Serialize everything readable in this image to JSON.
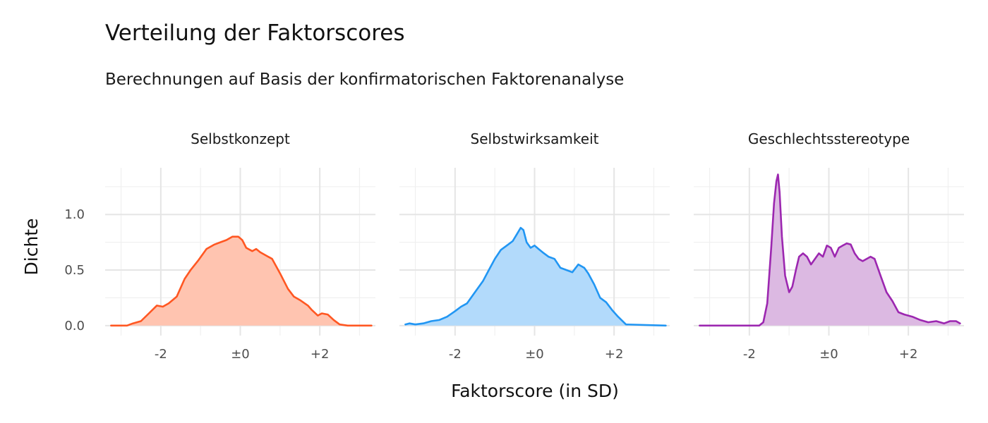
{
  "chart_data": {
    "type": "area",
    "title": "Verteilung der Faktorscores",
    "subtitle": "Berechnungen auf Basis der konfirmatorischen Faktorenanalyse",
    "xlabel": "Faktorscore (in SD)",
    "ylabel": "Dichte",
    "x_ticks": [
      -2,
      0,
      2
    ],
    "x_tick_labels": [
      "-2",
      "±0",
      "+2"
    ],
    "y_ticks": [
      0,
      0.5,
      1
    ],
    "y_tick_labels": [
      "0.0",
      "0.5",
      "1.0"
    ],
    "xlim": [
      -3.4,
      3.4
    ],
    "ylim": [
      -0.09,
      1.42
    ],
    "grid": true,
    "legend": "none",
    "panels": [
      {
        "name": "Selbstkonzept",
        "line_color": "#FF5722",
        "fill_color": "#FFC4B0",
        "x": [
          -3.25,
          -2.85,
          -2.7,
          -2.5,
          -2.3,
          -2.1,
          -1.95,
          -1.8,
          -1.6,
          -1.4,
          -1.25,
          -1.05,
          -0.85,
          -0.65,
          -0.5,
          -0.35,
          -0.2,
          -0.05,
          0.05,
          0.15,
          0.3,
          0.4,
          0.5,
          0.65,
          0.8,
          1.0,
          1.2,
          1.35,
          1.5,
          1.7,
          1.8,
          1.95,
          2.05,
          2.2,
          2.35,
          2.5,
          2.7,
          3.3
        ],
        "y": [
          0.0,
          0.0,
          0.02,
          0.04,
          0.11,
          0.18,
          0.17,
          0.2,
          0.26,
          0.42,
          0.5,
          0.59,
          0.69,
          0.73,
          0.75,
          0.77,
          0.8,
          0.8,
          0.77,
          0.7,
          0.67,
          0.69,
          0.66,
          0.63,
          0.6,
          0.47,
          0.33,
          0.26,
          0.23,
          0.18,
          0.14,
          0.09,
          0.11,
          0.1,
          0.05,
          0.01,
          0.0,
          0.0
        ]
      },
      {
        "name": "Selbstwirksamkeit",
        "line_color": "#2196F3",
        "fill_color": "#B2DAFB",
        "x": [
          -3.25,
          -3.15,
          -3.0,
          -2.8,
          -2.6,
          -2.4,
          -2.2,
          -2.0,
          -1.85,
          -1.7,
          -1.5,
          -1.3,
          -1.15,
          -1.0,
          -0.85,
          -0.7,
          -0.55,
          -0.45,
          -0.35,
          -0.28,
          -0.2,
          -0.1,
          0.0,
          0.1,
          0.2,
          0.35,
          0.5,
          0.65,
          0.8,
          0.95,
          1.1,
          1.25,
          1.35,
          1.5,
          1.65,
          1.8,
          1.95,
          2.1,
          2.3,
          3.3
        ],
        "y": [
          0.01,
          0.02,
          0.01,
          0.02,
          0.04,
          0.05,
          0.08,
          0.13,
          0.17,
          0.2,
          0.3,
          0.4,
          0.5,
          0.6,
          0.68,
          0.72,
          0.76,
          0.82,
          0.88,
          0.86,
          0.75,
          0.7,
          0.72,
          0.69,
          0.66,
          0.62,
          0.6,
          0.52,
          0.5,
          0.48,
          0.55,
          0.52,
          0.47,
          0.37,
          0.25,
          0.21,
          0.14,
          0.08,
          0.01,
          0.0
        ]
      },
      {
        "name": "Geschlechtsstereotype",
        "line_color": "#9C27B0",
        "fill_color": "#DCB9E2",
        "x": [
          -3.25,
          -1.75,
          -1.65,
          -1.55,
          -1.45,
          -1.38,
          -1.32,
          -1.28,
          -1.24,
          -1.18,
          -1.1,
          -1.0,
          -0.92,
          -0.83,
          -0.75,
          -0.65,
          -0.55,
          -0.45,
          -0.35,
          -0.25,
          -0.15,
          -0.05,
          0.05,
          0.15,
          0.25,
          0.35,
          0.45,
          0.55,
          0.65,
          0.75,
          0.85,
          0.95,
          1.05,
          1.15,
          1.3,
          1.45,
          1.6,
          1.75,
          1.9,
          2.1,
          2.3,
          2.5,
          2.7,
          2.9,
          3.05,
          3.2,
          3.3
        ],
        "y": [
          0.0,
          0.0,
          0.03,
          0.2,
          0.7,
          1.1,
          1.3,
          1.36,
          1.2,
          0.8,
          0.45,
          0.3,
          0.35,
          0.5,
          0.62,
          0.65,
          0.62,
          0.55,
          0.6,
          0.65,
          0.62,
          0.72,
          0.7,
          0.62,
          0.7,
          0.72,
          0.74,
          0.73,
          0.65,
          0.6,
          0.58,
          0.6,
          0.62,
          0.6,
          0.45,
          0.3,
          0.22,
          0.12,
          0.1,
          0.08,
          0.05,
          0.03,
          0.04,
          0.02,
          0.04,
          0.04,
          0.02
        ]
      }
    ]
  }
}
